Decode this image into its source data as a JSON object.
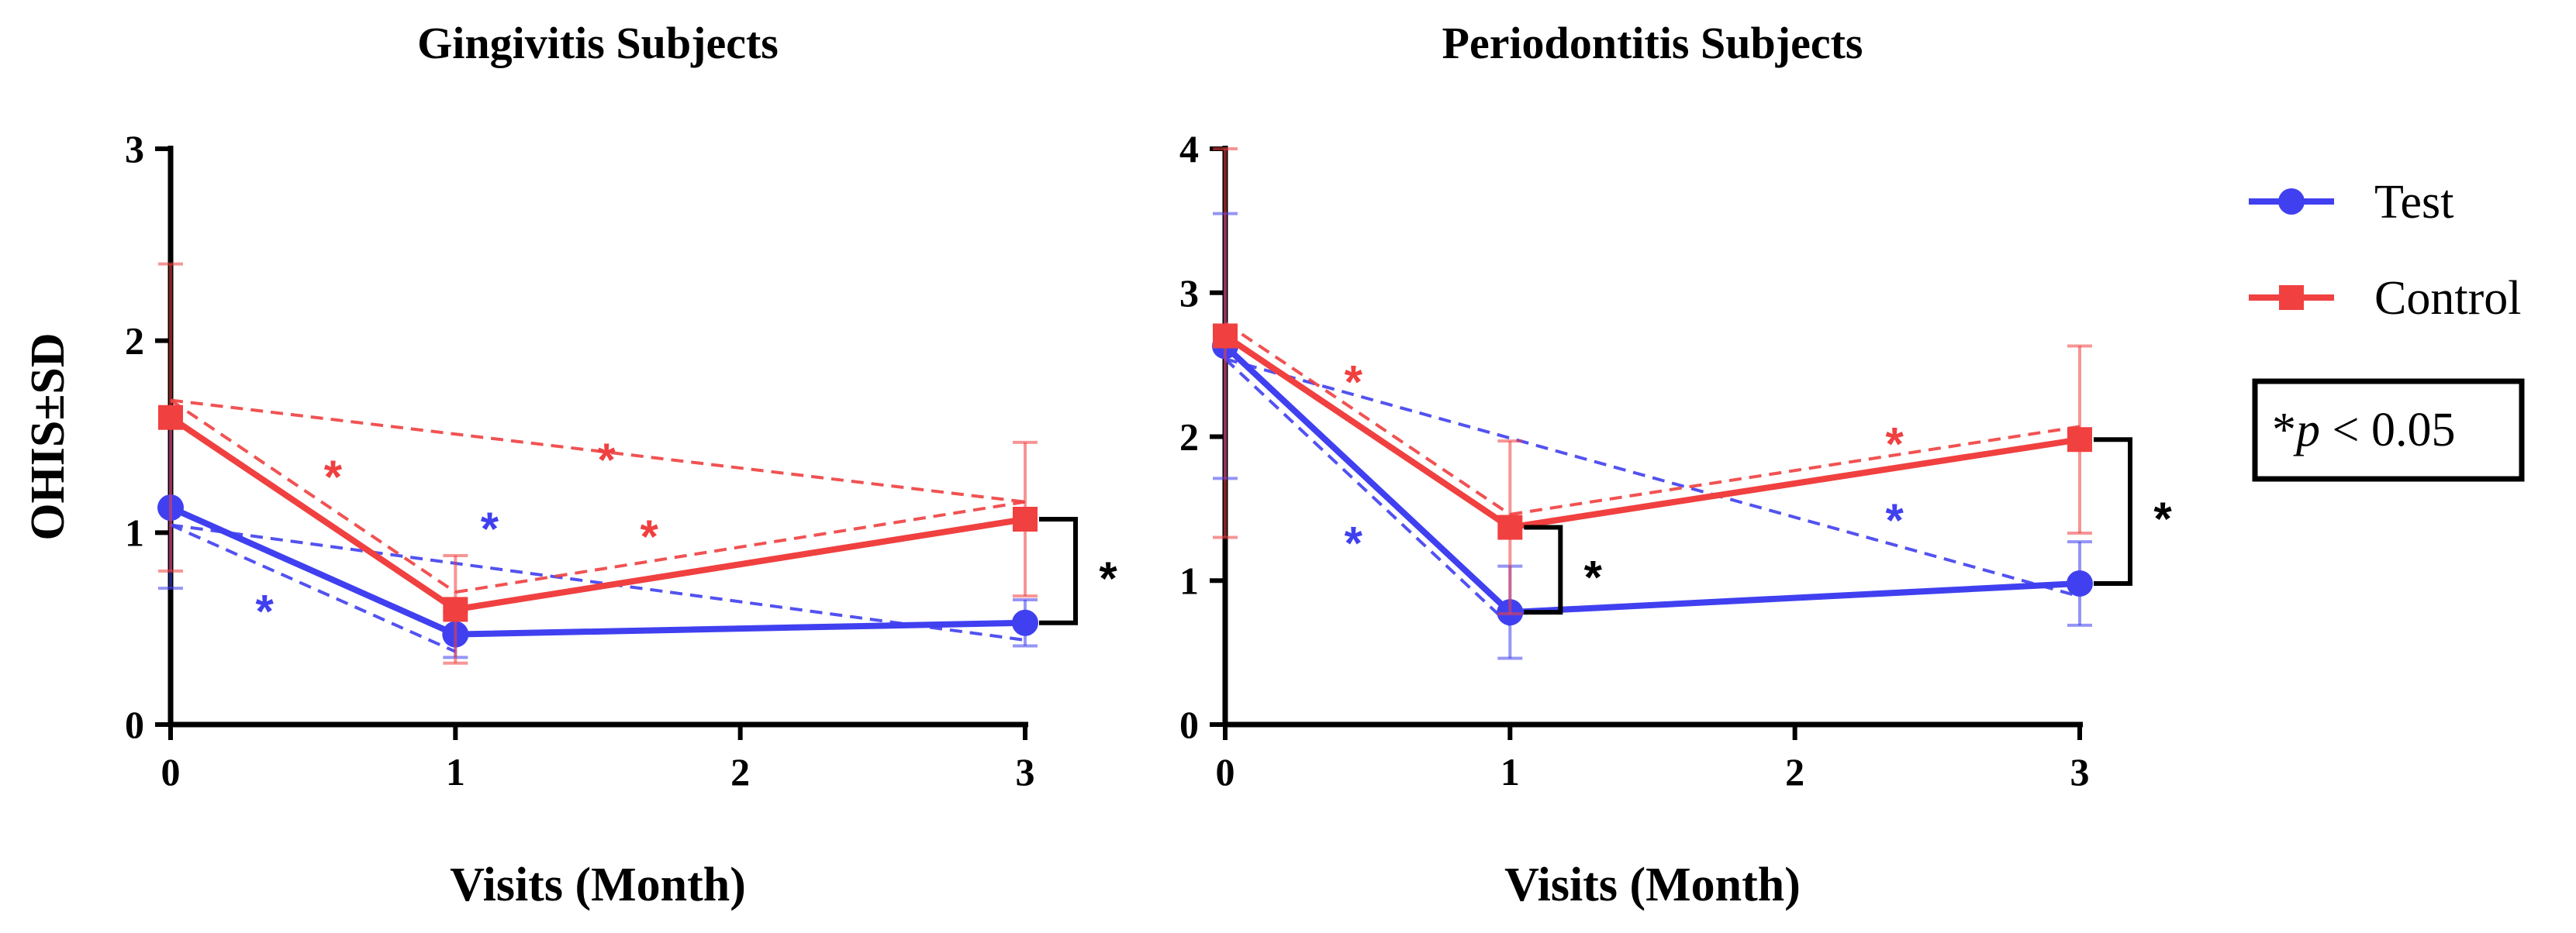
{
  "chart_data": [
    {
      "type": "line",
      "title": "Gingivitis Subjects",
      "xlabel": "Visits (Month)",
      "ylabel": "OHIS±SD",
      "xlim": [
        0,
        3
      ],
      "ylim": [
        0,
        3
      ],
      "x_ticks": [
        0,
        1,
        2,
        3
      ],
      "y_ticks": [
        0,
        1,
        2,
        3
      ],
      "series": [
        {
          "name": "Test",
          "color": "#4040f0",
          "marker": "circle",
          "x": [
            0,
            1,
            3
          ],
          "values": [
            1.13,
            0.47,
            0.53
          ],
          "sd": [
            0.42,
            0.12,
            0.12
          ]
        },
        {
          "name": "Control",
          "color": "#f04040",
          "marker": "square",
          "x": [
            0,
            1,
            3
          ],
          "values": [
            1.6,
            0.6,
            1.07
          ],
          "sd": [
            0.8,
            0.28,
            0.4
          ]
        }
      ],
      "comparisons": [
        {
          "series": "Test",
          "from": 0,
          "to": 1,
          "color": "#4040f0",
          "star": [
            0.33,
            0.62
          ]
        },
        {
          "series": "Test",
          "from": 0,
          "to": 3,
          "color": "#4040f0",
          "star": [
            1.12,
            1.05
          ]
        },
        {
          "series": "Control",
          "from": 0,
          "to": 1,
          "color": "#f04040",
          "star": [
            0.57,
            1.32
          ]
        },
        {
          "series": "Control",
          "from": 0,
          "to": 3,
          "color": "#f04040",
          "star": [
            1.53,
            1.41
          ]
        },
        {
          "series": "Control",
          "from": 1,
          "to": 3,
          "color": "#f04040",
          "star": [
            1.68,
            1.01
          ]
        }
      ],
      "between_groups": [
        {
          "x": 3,
          "label": "*"
        }
      ]
    },
    {
      "type": "line",
      "title": "Periodontitis Subjects",
      "xlabel": "Visits (Month)",
      "ylabel": "",
      "xlim": [
        0,
        3
      ],
      "ylim": [
        0,
        4
      ],
      "x_ticks": [
        0,
        1,
        2,
        3
      ],
      "y_ticks": [
        0,
        1,
        2,
        3,
        4
      ],
      "series": [
        {
          "name": "Test",
          "color": "#4040f0",
          "marker": "circle",
          "x": [
            0,
            1,
            3
          ],
          "values": [
            2.63,
            0.78,
            0.98
          ],
          "sd": [
            0.92,
            0.32,
            0.29
          ]
        },
        {
          "name": "Control",
          "color": "#f04040",
          "marker": "square",
          "x": [
            0,
            1,
            3
          ],
          "values": [
            2.7,
            1.37,
            1.98
          ],
          "sd": [
            1.4,
            0.6,
            0.65
          ]
        }
      ],
      "comparisons": [
        {
          "series": "Test",
          "from": 0,
          "to": 1,
          "color": "#4040f0",
          "star": [
            0.45,
            1.3
          ]
        },
        {
          "series": "Test",
          "from": 0,
          "to": 3,
          "color": "#4040f0",
          "star": [
            2.35,
            1.46
          ]
        },
        {
          "series": "Control",
          "from": 0,
          "to": 1,
          "color": "#f04040",
          "star": [
            0.45,
            2.42
          ]
        },
        {
          "series": "Control",
          "from": 1,
          "to": 3,
          "color": "#f04040",
          "star": [
            2.35,
            1.99
          ]
        }
      ],
      "between_groups": [
        {
          "x": 1,
          "label": "*"
        },
        {
          "x": 3,
          "label": "*"
        }
      ]
    }
  ],
  "legend": {
    "items": [
      {
        "label": "Test",
        "color": "#4040f0",
        "marker": "circle"
      },
      {
        "label": "Control",
        "color": "#f04040",
        "marker": "square"
      }
    ],
    "significance_star": "*",
    "significance_p": "p",
    "significance_rest": " < 0.05"
  }
}
